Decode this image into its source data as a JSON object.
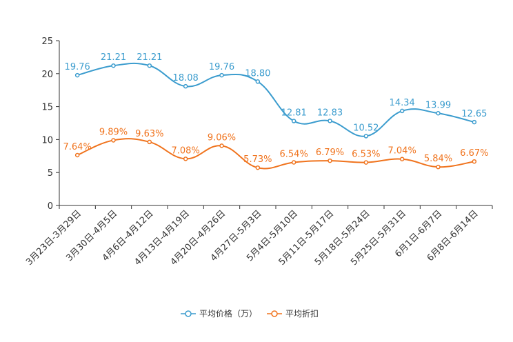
{
  "chart_data": {
    "type": "line",
    "title": "",
    "xlabel": "",
    "ylabel": "",
    "ylim": [
      0,
      25
    ],
    "yticks": [
      0,
      5,
      10,
      15,
      20,
      25
    ],
    "grid": false,
    "legend_position": "bottom-center",
    "categories": [
      "3月23日-3月29日",
      "3月30日-4月5日",
      "4月6日-4月12日",
      "4月13日-4月19日",
      "4月20日-4月26日",
      "4月27日-5月3日",
      "5月4日-5月10日",
      "5月11日-5月17日",
      "5月18日-5月24日",
      "5月25日-5月31日",
      "6月1日-6月7日",
      "6月8日-6月14日"
    ],
    "series": [
      {
        "name": "平均价格（万）",
        "color": "#3b9cce",
        "values": [
          19.76,
          21.21,
          21.21,
          18.08,
          19.76,
          18.8,
          12.81,
          12.83,
          10.52,
          14.34,
          13.99,
          12.65
        ],
        "labels": [
          "19.76",
          "21.21",
          "21.21",
          "18.08",
          "19.76",
          "18.80",
          "12.81",
          "12.83",
          "10.52",
          "14.34",
          "13.99",
          "12.65"
        ]
      },
      {
        "name": "平均折扣",
        "color": "#f0731d",
        "values": [
          7.64,
          9.89,
          9.63,
          7.08,
          9.06,
          5.73,
          6.54,
          6.79,
          6.53,
          7.04,
          5.84,
          6.67
        ],
        "labels": [
          "7.64%",
          "9.89%",
          "9.63%",
          "7.08%",
          "9.06%",
          "5.73%",
          "6.54%",
          "6.79%",
          "6.53%",
          "7.04%",
          "5.84%",
          "6.67%"
        ]
      }
    ]
  }
}
